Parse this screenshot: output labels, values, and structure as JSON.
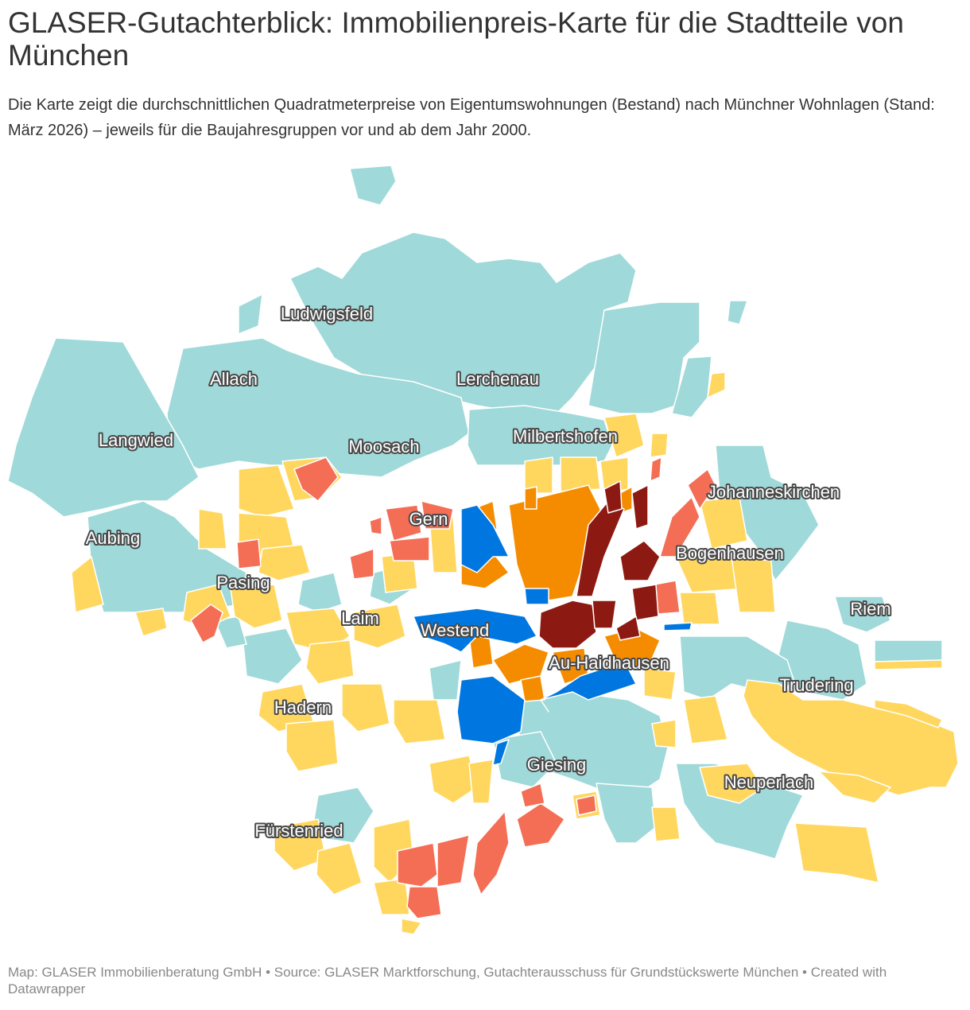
{
  "title": "GLASER-Gutachterblick: Immobilienpreis-Karte für die Stadtteile von München",
  "subtitle": "Die Karte zeigt die durchschnittlichen Quadratmeterpreise von Eigentumswohnungen (Bestand) nach Münchner Wohnlagen (Stand: März 2026) – jeweils für die Baujahresgruppen vor und ab dem Jahr 2000.",
  "footer": {
    "map_credit": "Map: GLASER Immobilienberatung GmbH",
    "separator": "•",
    "source": "Source: GLASER Marktforschung, Gutachterausschuss für Grundstückswerte München",
    "created": "Created with Datawrapper"
  },
  "colors": {
    "teal": "#a0d9d9",
    "yellow": "#ffd75e",
    "salmon": "#f46d55",
    "orange": "#f58c00",
    "darkred": "#8d1a12",
    "blue": "#0077e0"
  },
  "labels": {
    "ludwigsfeld": "Ludwigsfeld",
    "allach": "Allach",
    "lerchenau": "Lerchenau",
    "langwied": "Langwied",
    "moosach": "Moosach",
    "milbertshofen": "Milbertshofen",
    "johanneskirchen": "Johanneskirchen",
    "gern": "Gern",
    "aubing": "Aubing",
    "bogenhausen": "Bogenhausen",
    "pasing": "Pasing",
    "laim": "Laim",
    "riem": "Riem",
    "westend": "Westend",
    "au_haidhausen": "Au-Haidhausen",
    "trudering": "Trudering",
    "hadern": "Hadern",
    "giesing": "Giesing",
    "neuperlach": "Neuperlach",
    "fuerstenried": "Fürstenried"
  }
}
